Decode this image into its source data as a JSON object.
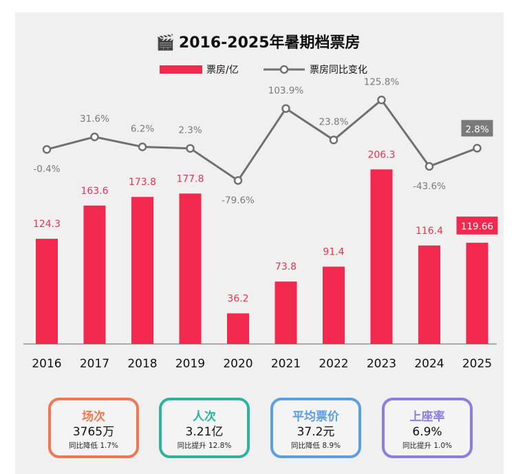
{
  "title": "2016-2025年暑期档票房",
  "title_icon": "clapperboard-icon",
  "colors": {
    "bar": "#f2294e",
    "line": "#707070",
    "bar_label": "#e8334f",
    "line_label": "#7a7a7a"
  },
  "chart_data": {
    "type": "bar+line",
    "categories": [
      "2016",
      "2017",
      "2018",
      "2019",
      "2020",
      "2021",
      "2022",
      "2023",
      "2024",
      "2025"
    ],
    "series": [
      {
        "name": "票房/亿",
        "type": "bar",
        "values": [
          124.3,
          163.6,
          173.8,
          177.8,
          36.2,
          73.8,
          91.4,
          206.3,
          116.4,
          119.66
        ],
        "labels": [
          "124.3",
          "163.6",
          "173.8",
          "177.8",
          "36.2",
          "73.8",
          "91.4",
          "206.3",
          "116.4",
          "119.66"
        ]
      },
      {
        "name": "票房同比变化",
        "type": "line",
        "values": [
          -0.4,
          31.6,
          6.2,
          2.3,
          -79.6,
          103.9,
          23.8,
          125.8,
          -43.6,
          2.8
        ],
        "labels": [
          "-0.4%",
          "31.6%",
          "6.2%",
          "2.3%",
          "-79.6%",
          "103.9%",
          "23.8%",
          "125.8%",
          "-43.6%",
          "2.8%"
        ]
      }
    ],
    "legend_position": "top-center",
    "highlight_last": true
  },
  "cards": [
    {
      "title": "场次",
      "value": "3765万",
      "sub": "同比降低 1.7%",
      "color": "#f07850"
    },
    {
      "title": "人次",
      "value": "3.21亿",
      "sub": "同比提升 12.8%",
      "color": "#2bb39b"
    },
    {
      "title": "平均票价",
      "value": "37.2元",
      "sub": "同比降低 8.9%",
      "color": "#5b9fe3"
    },
    {
      "title": "上座率",
      "value": "6.9%",
      "sub": "同比提升 1.0%",
      "color": "#8b7ee0"
    }
  ]
}
